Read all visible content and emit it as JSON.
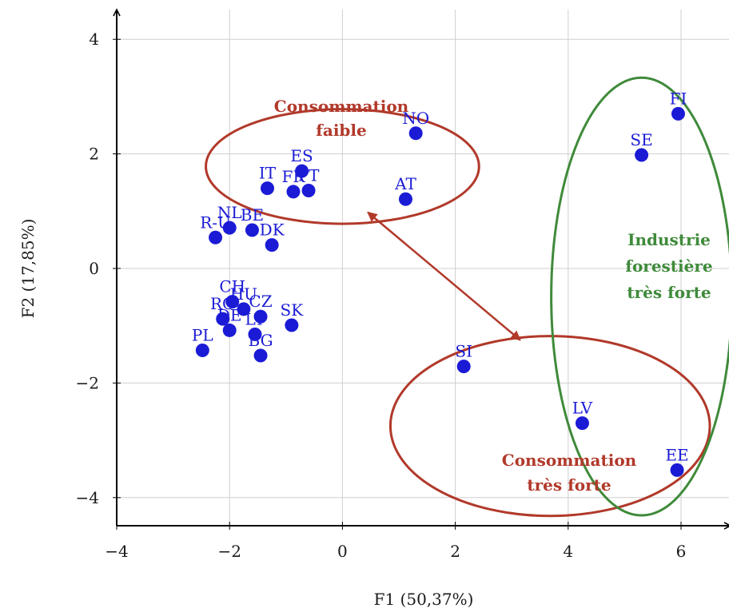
{
  "chart_data": {
    "type": "scatter",
    "title": "",
    "xlabel": "F1 (50,37%)",
    "ylabel": "F2 (17,85%)",
    "xlim": [
      -4,
      6.8
    ],
    "ylim": [
      -4.5,
      4.5
    ],
    "x_ticks": [
      -4,
      -2,
      0,
      2,
      4,
      6
    ],
    "y_ticks": [
      -4,
      -2,
      0,
      2,
      4
    ],
    "x_tick_labels": [
      "−4",
      "−2",
      "0",
      "2",
      "4",
      "6"
    ],
    "y_tick_labels": [
      "−4",
      "−2",
      "0",
      "2",
      "4"
    ],
    "grid": true,
    "marker_color": "#1b1bd6",
    "points": [
      {
        "label": "FI",
        "x": 5.95,
        "y": 2.7
      },
      {
        "label": "SE",
        "x": 5.3,
        "y": 1.98
      },
      {
        "label": "NO",
        "x": 1.3,
        "y": 2.36
      },
      {
        "label": "AT",
        "x": 1.12,
        "y": 1.21
      },
      {
        "label": "ES",
        "x": -0.72,
        "y": 1.7
      },
      {
        "label": "IT",
        "x": -1.33,
        "y": 1.4
      },
      {
        "label": "FR",
        "x": -0.87,
        "y": 1.34
      },
      {
        "label": "PT",
        "x": -0.6,
        "y": 1.36
      },
      {
        "label": "NL",
        "x": -2.0,
        "y": 0.71
      },
      {
        "label": "BE",
        "x": -1.6,
        "y": 0.67
      },
      {
        "label": "R-U",
        "x": -2.25,
        "y": 0.54
      },
      {
        "label": "DK",
        "x": -1.25,
        "y": 0.41
      },
      {
        "label": "CH",
        "x": -1.95,
        "y": -0.58
      },
      {
        "label": "HU",
        "x": -1.75,
        "y": -0.71
      },
      {
        "label": "CZ",
        "x": -1.45,
        "y": -0.84
      },
      {
        "label": "RO",
        "x": -2.12,
        "y": -0.88
      },
      {
        "label": "DE",
        "x": -2.0,
        "y": -1.08
      },
      {
        "label": "LT",
        "x": -1.55,
        "y": -1.15
      },
      {
        "label": "SK",
        "x": -0.9,
        "y": -0.99
      },
      {
        "label": "PL",
        "x": -2.48,
        "y": -1.43
      },
      {
        "label": "BG",
        "x": -1.45,
        "y": -1.52
      },
      {
        "label": "SI",
        "x": 2.15,
        "y": -1.71
      },
      {
        "label": "LV",
        "x": 4.25,
        "y": -2.7
      },
      {
        "label": "EE",
        "x": 5.93,
        "y": -3.52
      }
    ],
    "annotations": [
      {
        "id": "low",
        "lines": [
          "Consommation",
          "faible"
        ],
        "color": "#b1392a"
      },
      {
        "id": "high",
        "lines": [
          "Consommation",
          "très forte"
        ],
        "color": "#b1392a"
      },
      {
        "id": "forest",
        "lines": [
          "Industrie",
          "forestière",
          "très forte"
        ],
        "color": "#3f8a3a"
      }
    ],
    "ellipses": [
      {
        "id": "low",
        "cx": 0.0,
        "cy": 1.78,
        "rx": 2.42,
        "ry": 1.0,
        "color": "#b1392a"
      },
      {
        "id": "high",
        "cx": 3.68,
        "cy": -2.75,
        "rx": 2.83,
        "ry": 1.57,
        "color": "#b1392a"
      },
      {
        "id": "forest",
        "cx": 5.3,
        "cy": -0.49,
        "rx": 1.6,
        "ry": 3.82,
        "color": "#3f8a3a"
      }
    ],
    "arrow": {
      "from": [
        0.45,
        0.98
      ],
      "to": [
        3.15,
        -1.25
      ],
      "color": "#b1392a"
    }
  }
}
